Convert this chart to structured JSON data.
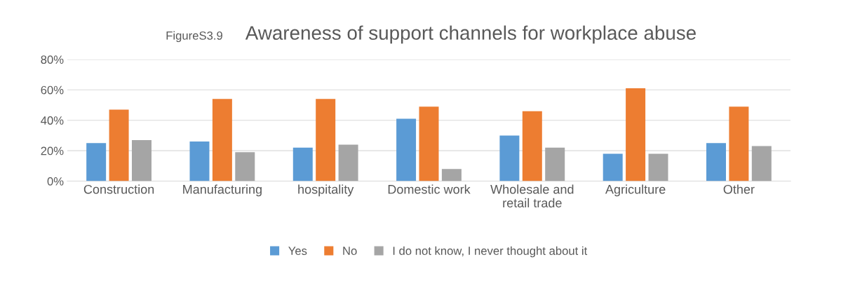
{
  "chart_data": {
    "type": "bar",
    "title": "Awareness of support channels for workplace abuse",
    "annotations": [
      "FigureS3.9"
    ],
    "categories": [
      "Construction",
      "Manufacturing",
      "hospitality",
      "Domestic work",
      "Wholesale and\nretail trade",
      "Agriculture",
      "Other"
    ],
    "series": [
      {
        "name": "Yes",
        "color": "#5b9bd5",
        "values": [
          25,
          26,
          22,
          41,
          30,
          18,
          25
        ]
      },
      {
        "name": "No",
        "color": "#ed7d31",
        "values": [
          47,
          54,
          54,
          49,
          46,
          61,
          49
        ]
      },
      {
        "name": "I do not know, I never thought about it",
        "color": "#a5a5a5",
        "values": [
          27,
          19,
          24,
          8,
          22,
          18,
          23
        ]
      }
    ],
    "ylim": [
      0,
      80
    ],
    "yticks": [
      {
        "value": 0,
        "label": "0%"
      },
      {
        "value": 20,
        "label": "20%"
      },
      {
        "value": 40,
        "label": "40%"
      },
      {
        "value": 60,
        "label": "60%"
      },
      {
        "value": 80,
        "label": "80%"
      }
    ],
    "grid": "y",
    "legend": "bottom"
  }
}
